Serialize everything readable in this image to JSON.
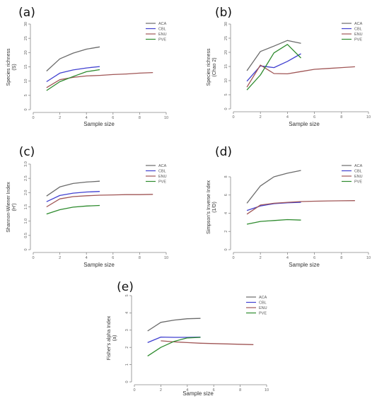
{
  "legend_names": [
    "ACA",
    "CBL",
    "ENU",
    "PVE"
  ],
  "colors": {
    "ACA": "#6b6b6b",
    "CBL": "#4040d0",
    "ENU": "#a05656",
    "PVE": "#2e8b2e"
  },
  "chart_data": [
    {
      "type": "line",
      "panel_label": "(a)",
      "xlabel": "Sample size",
      "ylabel_lines": [
        "Species richness",
        "(S)"
      ],
      "xlim": [
        0,
        10
      ],
      "ylim": [
        0,
        30
      ],
      "xticks": [
        0,
        2,
        4,
        6,
        8,
        10
      ],
      "yticks": [
        0,
        5,
        10,
        15,
        20,
        25,
        30
      ],
      "legend": "top-right",
      "series": [
        {
          "name": "ACA",
          "x": [
            1,
            2,
            3,
            4,
            5
          ],
          "y": [
            13.5,
            17.8,
            19.8,
            21.2,
            22
          ]
        },
        {
          "name": "CBL",
          "x": [
            1,
            2,
            3,
            4,
            5
          ],
          "y": [
            9.8,
            12.8,
            13.9,
            14.6,
            15.1
          ]
        },
        {
          "name": "ENU",
          "x": [
            1,
            2,
            3,
            4,
            5,
            6,
            7,
            8,
            9
          ],
          "y": [
            7.7,
            10.5,
            11.3,
            11.8,
            12.0,
            12.3,
            12.5,
            12.8,
            13.0
          ]
        },
        {
          "name": "PVE",
          "x": [
            1,
            2,
            3,
            4,
            5
          ],
          "y": [
            6.7,
            9.8,
            11.6,
            13.3,
            14.0
          ]
        }
      ]
    },
    {
      "type": "line",
      "panel_label": "(b)",
      "xlabel": "Sample size",
      "ylabel_lines": [
        "Species richness",
        "(Chao 2)"
      ],
      "xlim": [
        0,
        10
      ],
      "ylim": [
        0,
        30
      ],
      "xticks": [
        0,
        2,
        4,
        6,
        8,
        10
      ],
      "yticks": [
        0,
        5,
        10,
        15,
        20,
        25,
        30
      ],
      "legend": "top-right",
      "series": [
        {
          "name": "ACA",
          "x": [
            1,
            2,
            3,
            4,
            5
          ],
          "y": [
            13.5,
            20.3,
            22.2,
            24.2,
            23.2
          ]
        },
        {
          "name": "CBL",
          "x": [
            1,
            2,
            3,
            4,
            5
          ],
          "y": [
            9.8,
            15.2,
            14.6,
            16.8,
            19.5
          ]
        },
        {
          "name": "ENU",
          "x": [
            1,
            2,
            3,
            4,
            5,
            6,
            7,
            8,
            9
          ],
          "y": [
            7.7,
            15.5,
            12.5,
            12.4,
            13.2,
            14.0,
            14.3,
            14.6,
            14.9
          ]
        },
        {
          "name": "PVE",
          "x": [
            1,
            2,
            3,
            4,
            5
          ],
          "y": [
            6.7,
            12.0,
            19.8,
            22.8,
            18.0
          ]
        }
      ]
    },
    {
      "type": "line",
      "panel_label": "(c)",
      "xlabel": "Sample size",
      "ylabel_lines": [
        "Shannon-Wiener Index",
        "(H')"
      ],
      "xlim": [
        0,
        10
      ],
      "ylim": [
        0,
        3
      ],
      "xticks": [
        0,
        2,
        4,
        6,
        8,
        10
      ],
      "yticks": [
        0,
        0.5,
        1.0,
        1.5,
        2.0,
        2.5,
        3.0
      ],
      "ytick_labels": [
        "0",
        "0.5",
        "1.0",
        "1.5",
        "2.0",
        "2.5",
        "3.0"
      ],
      "legend": "top-right",
      "series": [
        {
          "name": "ACA",
          "x": [
            1,
            2,
            3,
            4,
            5
          ],
          "y": [
            1.88,
            2.2,
            2.32,
            2.37,
            2.4
          ]
        },
        {
          "name": "CBL",
          "x": [
            1,
            2,
            3,
            4,
            5
          ],
          "y": [
            1.68,
            1.9,
            1.98,
            2.02,
            2.04
          ]
        },
        {
          "name": "ENU",
          "x": [
            1,
            2,
            3,
            4,
            5,
            6,
            7,
            8,
            9
          ],
          "y": [
            1.5,
            1.78,
            1.86,
            1.89,
            1.91,
            1.92,
            1.93,
            1.93,
            1.94
          ]
        },
        {
          "name": "PVE",
          "x": [
            1,
            2,
            3,
            4,
            5
          ],
          "y": [
            1.25,
            1.4,
            1.49,
            1.53,
            1.55
          ]
        }
      ]
    },
    {
      "type": "line",
      "panel_label": "(d)",
      "xlabel": "Sample size",
      "ylabel_lines": [
        "Simpson's Inverse Index",
        "(1/D)"
      ],
      "xlim": [
        0,
        10
      ],
      "ylim": [
        0,
        9.4
      ],
      "xticks": [
        0,
        2,
        4,
        6,
        8,
        10
      ],
      "yticks": [
        0,
        2,
        4,
        6,
        8
      ],
      "legend": "top-right",
      "series": [
        {
          "name": "ACA",
          "x": [
            1,
            2,
            3,
            4,
            5
          ],
          "y": [
            5.1,
            7.0,
            8.0,
            8.4,
            8.7
          ]
        },
        {
          "name": "CBL",
          "x": [
            1,
            2,
            3,
            4,
            5
          ],
          "y": [
            4.3,
            4.8,
            5.05,
            5.15,
            5.2
          ]
        },
        {
          "name": "ENU",
          "x": [
            1,
            2,
            3,
            4,
            5,
            6,
            7,
            8,
            9
          ],
          "y": [
            3.9,
            4.9,
            5.1,
            5.2,
            5.28,
            5.32,
            5.35,
            5.37,
            5.38
          ]
        },
        {
          "name": "PVE",
          "x": [
            1,
            2,
            3,
            4,
            5
          ],
          "y": [
            2.8,
            3.1,
            3.2,
            3.3,
            3.25
          ]
        }
      ]
    },
    {
      "type": "line",
      "panel_label": "(e)",
      "xlabel": "Sample size",
      "ylabel_lines": [
        "Fisher's alpha Index",
        "(a)"
      ],
      "xlim": [
        0,
        10
      ],
      "ylim": [
        0,
        5
      ],
      "xticks": [
        0,
        2,
        4,
        6,
        8,
        10
      ],
      "yticks": [
        0,
        1,
        2,
        3,
        4,
        5
      ],
      "legend": "top-right",
      "series": [
        {
          "name": "ACA",
          "x": [
            1,
            2,
            3,
            4,
            5
          ],
          "y": [
            2.95,
            3.45,
            3.58,
            3.66,
            3.68
          ]
        },
        {
          "name": "CBL",
          "x": [
            1,
            2,
            3,
            4,
            5
          ],
          "y": [
            2.28,
            2.6,
            2.58,
            2.58,
            2.6
          ]
        },
        {
          "name": "ENU",
          "x": [
            2,
            3,
            4,
            5,
            6,
            7,
            8,
            9
          ],
          "y": [
            2.38,
            2.32,
            2.28,
            2.24,
            2.22,
            2.2,
            2.18,
            2.16
          ]
        },
        {
          "name": "PVE",
          "x": [
            1,
            2,
            3,
            4,
            5
          ],
          "y": [
            1.5,
            2.0,
            2.35,
            2.55,
            2.58
          ]
        }
      ]
    }
  ]
}
